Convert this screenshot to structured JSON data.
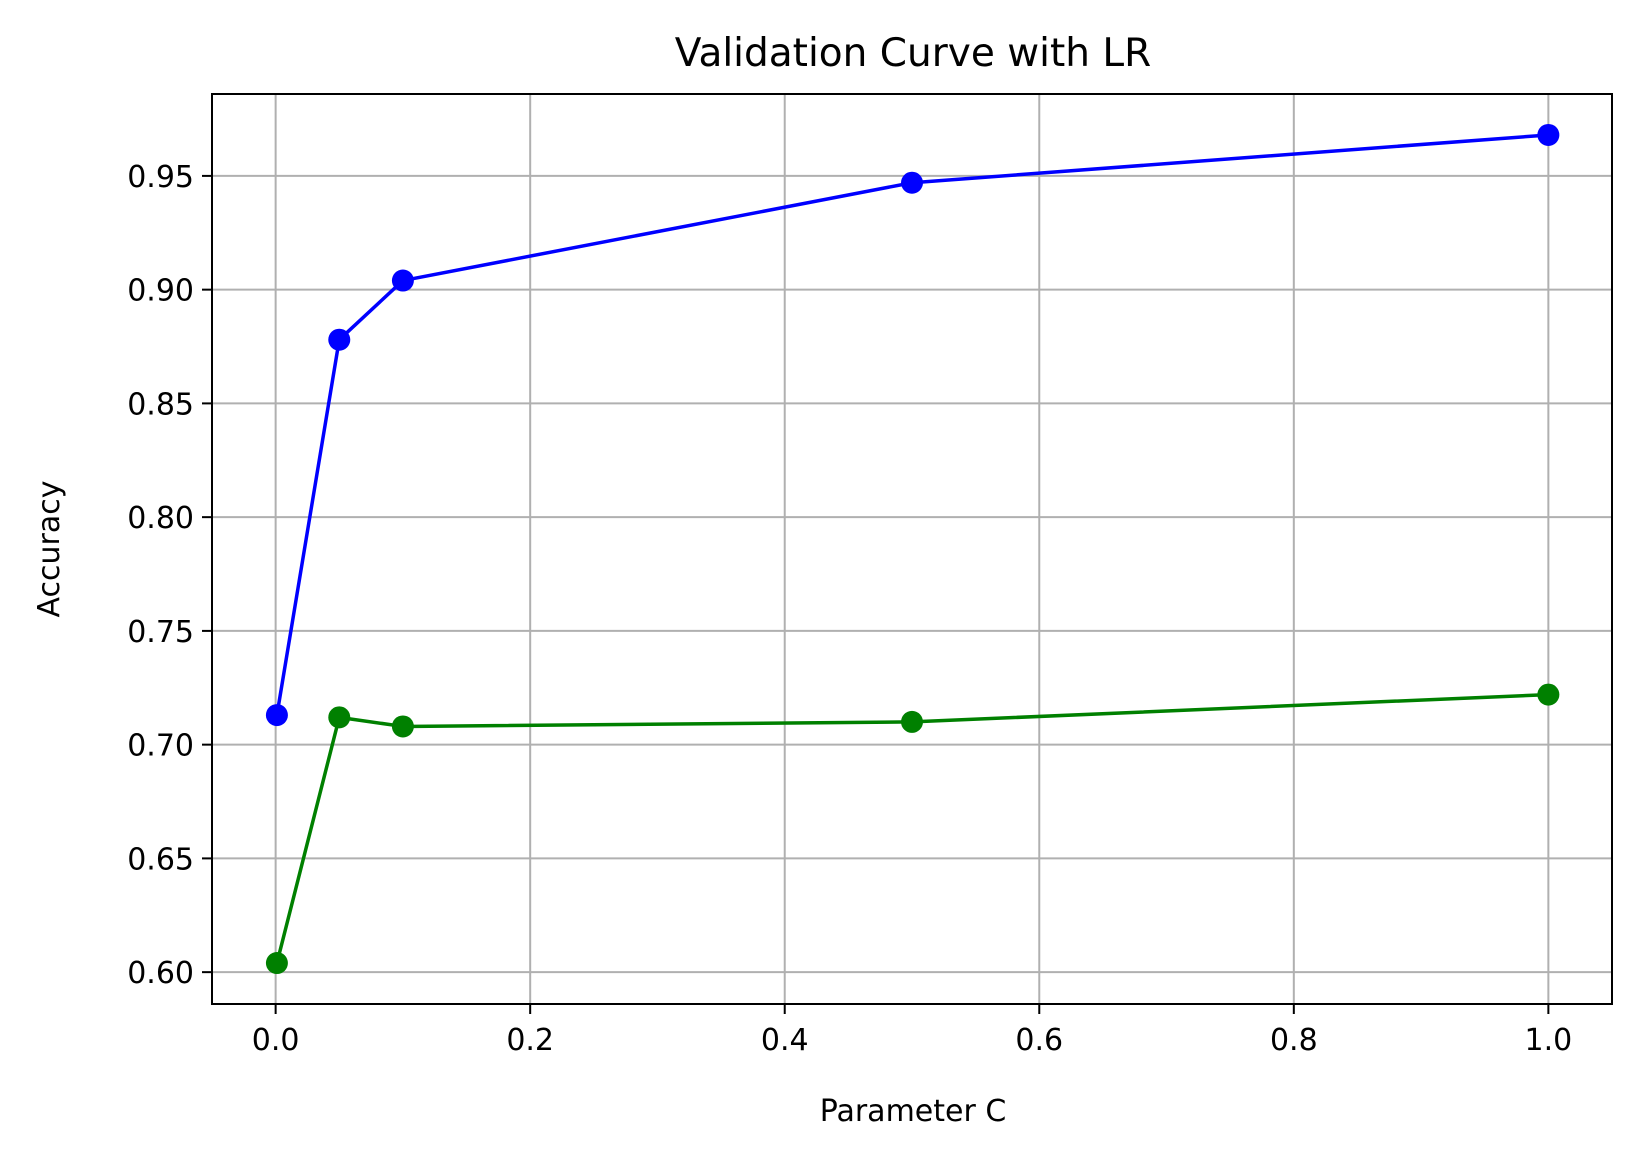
{
  "chart_data": {
    "type": "line",
    "title": "Validation Curve with LR",
    "xlabel": "Parameter C",
    "ylabel": "Accuracy",
    "xlim": [
      -0.05,
      1.05
    ],
    "ylim": [
      0.586,
      0.986
    ],
    "grid": true,
    "x_ticks": [
      0.0,
      0.2,
      0.4,
      0.6,
      0.8,
      1.0
    ],
    "x_tick_labels": [
      "0.0",
      "0.2",
      "0.4",
      "0.6",
      "0.8",
      "1.0"
    ],
    "y_ticks": [
      0.6,
      0.65,
      0.7,
      0.75,
      0.8,
      0.85,
      0.9,
      0.95
    ],
    "y_tick_labels": [
      "0.60",
      "0.65",
      "0.70",
      "0.75",
      "0.80",
      "0.85",
      "0.90",
      "0.95"
    ],
    "x": [
      0.001,
      0.05,
      0.1,
      0.5,
      1.0
    ],
    "series": [
      {
        "values": [
          0.713,
          0.878,
          0.904,
          0.947,
          0.968
        ],
        "color": "#0000ff",
        "marker": "circle"
      },
      {
        "values": [
          0.604,
          0.712,
          0.708,
          0.71,
          0.722
        ],
        "color": "#008000",
        "marker": "circle"
      }
    ]
  }
}
